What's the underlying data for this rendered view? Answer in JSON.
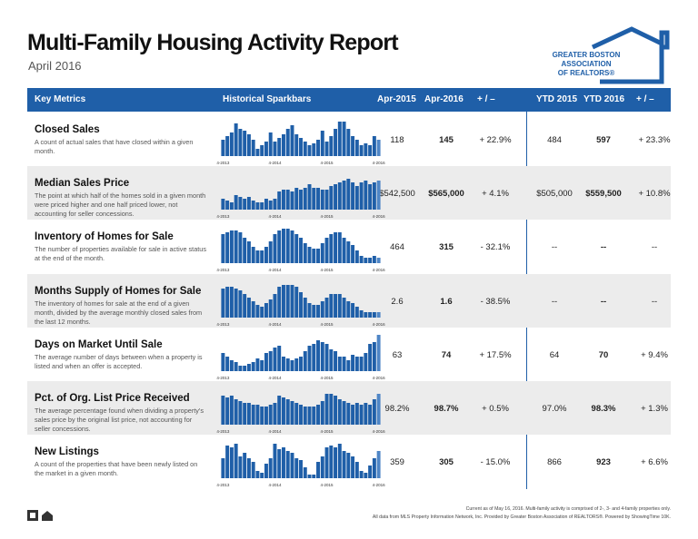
{
  "header": {
    "title": "Multi-Family Housing Activity Report",
    "subtitle": "April 2016",
    "logo": [
      "GREATER BOSTON",
      "ASSOCIATION",
      "OF REALTORS®"
    ]
  },
  "table": {
    "columns": [
      "Key Metrics",
      "Historical Sparkbars",
      "Apr-2015",
      "Apr-2016",
      "+ / –",
      "YTD 2015",
      "YTD 2016",
      "+ / –"
    ],
    "spark_labels": [
      "4-2013",
      "4-2014",
      "4-2015",
      "4-2016"
    ],
    "rows": [
      {
        "name": "Closed Sales",
        "description": "A count of actual sales that have closed within a given month.",
        "cells": [
          "118",
          "145",
          "+ 22.9%",
          "484",
          "597",
          "+ 23.3%"
        ],
        "spark": [
          45,
          55,
          65,
          90,
          75,
          70,
          60,
          45,
          20,
          30,
          40,
          65,
          40,
          50,
          60,
          75,
          85,
          60,
          50,
          40,
          30,
          35,
          45,
          70,
          40,
          55,
          75,
          95,
          95,
          75,
          55,
          45,
          30,
          35,
          30,
          55,
          45
        ]
      },
      {
        "name": "Median Sales Price",
        "description": "The point at which half of the homes sold in a given month were priced higher and one half priced lower, not accounting for seller concessions.",
        "cells": [
          "$542,500",
          "$565,000",
          "+ 4.1%",
          "$505,000",
          "$559,500",
          "+ 10.8%"
        ],
        "spark": [
          30,
          25,
          20,
          40,
          35,
          30,
          35,
          25,
          20,
          20,
          30,
          25,
          30,
          50,
          55,
          55,
          50,
          60,
          55,
          60,
          70,
          60,
          60,
          55,
          55,
          65,
          70,
          75,
          80,
          85,
          75,
          65,
          75,
          80,
          70,
          75,
          80
        ]
      },
      {
        "name": "Inventory of Homes for Sale",
        "description": "The number of properties available for sale in active status at the end of the month.",
        "cells": [
          "464",
          "315",
          "- 32.1%",
          "--",
          "--",
          "--"
        ],
        "spark": [
          80,
          85,
          90,
          90,
          85,
          70,
          60,
          45,
          35,
          35,
          45,
          60,
          80,
          90,
          95,
          95,
          90,
          80,
          70,
          55,
          45,
          40,
          40,
          55,
          70,
          80,
          85,
          85,
          70,
          60,
          50,
          35,
          20,
          15,
          15,
          20,
          15
        ]
      },
      {
        "name": "Months Supply of Homes for Sale",
        "description": "The inventory of homes for sale at the end of a given month, divided by the average monthly closed sales from the last 12 months.",
        "cells": [
          "2.6",
          "1.6",
          "- 38.5%",
          "--",
          "--",
          "--"
        ],
        "spark": [
          80,
          85,
          85,
          80,
          75,
          65,
          55,
          45,
          35,
          30,
          40,
          50,
          65,
          85,
          90,
          90,
          90,
          85,
          70,
          55,
          40,
          35,
          35,
          45,
          55,
          65,
          65,
          65,
          55,
          45,
          40,
          30,
          20,
          15,
          15,
          15,
          15
        ]
      },
      {
        "name": "Days on Market Until Sale",
        "description": "The average number of days between when a property is listed and when an offer is accepted.",
        "cells": [
          "63",
          "74",
          "+ 17.5%",
          "64",
          "70",
          "+ 9.4%"
        ],
        "spark": [
          50,
          40,
          30,
          25,
          15,
          15,
          20,
          25,
          35,
          30,
          50,
          55,
          65,
          70,
          40,
          35,
          30,
          35,
          40,
          55,
          70,
          75,
          85,
          80,
          75,
          60,
          55,
          40,
          40,
          30,
          45,
          40,
          40,
          50,
          75,
          80,
          100
        ]
      },
      {
        "name": "Pct. of Org. List Price Received",
        "description": "The average percentage found when dividing a property's sales price by the original list price, not accounting for seller concessions.",
        "cells": [
          "98.2%",
          "98.7%",
          "+ 0.5%",
          "97.0%",
          "98.3%",
          "+ 1.3%"
        ],
        "spark": [
          80,
          75,
          80,
          70,
          65,
          60,
          60,
          55,
          55,
          50,
          50,
          55,
          60,
          80,
          75,
          70,
          65,
          60,
          55,
          50,
          50,
          50,
          55,
          65,
          85,
          85,
          80,
          70,
          65,
          60,
          55,
          60,
          55,
          60,
          55,
          70,
          85
        ]
      },
      {
        "name": "New Listings",
        "description": "A count of the properties that have been newly listed on the market in a given month.",
        "cells": [
          "359",
          "305",
          "- 15.0%",
          "866",
          "923",
          "+ 6.6%"
        ],
        "spark": [
          55,
          90,
          85,
          95,
          60,
          70,
          55,
          45,
          20,
          15,
          40,
          55,
          95,
          80,
          85,
          75,
          70,
          55,
          50,
          30,
          10,
          10,
          45,
          60,
          85,
          90,
          85,
          95,
          75,
          70,
          60,
          45,
          20,
          15,
          35,
          55,
          75
        ]
      }
    ]
  },
  "footer": [
    "Current as of May 16, 2016. Multi-family activity is comprised of 2-, 3- and 4-family properties only.",
    "All data from MLS Property Information Network, Inc. Provided by Greater Boston Association of REALTORS®. Powered by ShowingTime 10K."
  ]
}
